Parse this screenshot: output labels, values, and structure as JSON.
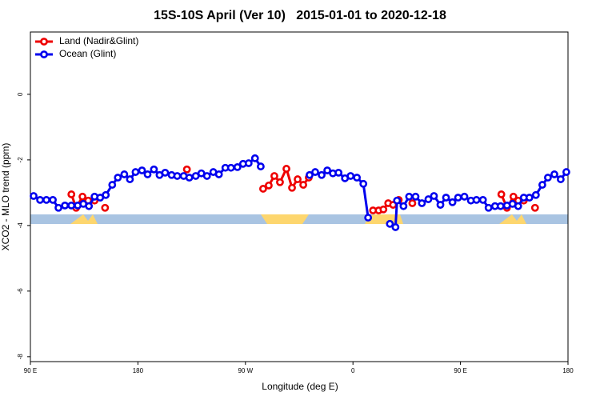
{
  "chart_data": {
    "type": "line",
    "title": "15S-10S April (Ver 10)   2015-01-01 to 2020-12-18",
    "xlabel": "Longitude (deg E)",
    "ylabel": "XCO2 - MLO trend (ppm)",
    "xlim": [
      90,
      540
    ],
    "ylim": [
      -8.15,
      1.9
    ],
    "xticks": [
      {
        "value": 90,
        "label": "90 E"
      },
      {
        "value": 180,
        "label": "180"
      },
      {
        "value": 270,
        "label": "90 W"
      },
      {
        "value": 360,
        "label": "0"
      },
      {
        "value": 450,
        "label": "90 E"
      },
      {
        "value": 540,
        "label": "180"
      }
    ],
    "yticks": [
      0,
      -2,
      -4,
      -6,
      -8
    ],
    "legend": "top-left",
    "series": [
      {
        "name": "Land (Nadir&Glint)",
        "color": "#ee0000",
        "x": [
          124.3,
          128.3,
          133.6,
          138.4,
          143.7,
          null,
          152.5,
          null,
          221.0,
          null,
          284.8,
          289.5,
          294.2,
          298.9,
          304.3,
          309.0,
          313.7,
          318.4,
          323.0,
          null,
          376.8,
          381.5,
          385.5,
          389.5,
          393.6,
          398.3,
          null,
          409.7,
          null,
          484.2,
          488.9,
          494.3,
          498.3,
          503.0,
          null,
          512.4
        ],
        "values": [
          -3.05,
          -3.46,
          -3.12,
          -3.24,
          -3.24,
          null,
          -3.46,
          null,
          -2.29,
          null,
          -2.88,
          -2.78,
          -2.49,
          -2.68,
          -2.27,
          -2.85,
          -2.59,
          -2.76,
          -2.54,
          null,
          -3.54,
          -3.54,
          -3.51,
          -3.32,
          -3.37,
          -3.22,
          null,
          -3.32,
          null,
          -3.05,
          -3.46,
          -3.12,
          -3.24,
          -3.24,
          null,
          -3.46
        ]
      },
      {
        "name": "Ocean (Glint)",
        "color": "#0000ee",
        "x": [
          92.7,
          98.1,
          103.4,
          108.8,
          113.5,
          118.9,
          124.3,
          129.6,
          134.3,
          139.0,
          143.7,
          148.4,
          153.1,
          158.5,
          163.2,
          168.6,
          173.3,
          178.0,
          183.4,
          188.1,
          193.4,
          198.1,
          202.8,
          208.2,
          212.9,
          218.3,
          223.0,
          228.4,
          233.1,
          237.8,
          243.1,
          247.8,
          253.2,
          257.9,
          263.3,
          268.0,
          272.7,
          278.0,
          282.8,
          null,
          323.7,
          328.4,
          333.8,
          338.5,
          343.2,
          347.9,
          353.3,
          358.0,
          363.3,
          368.7,
          372.7,
          null,
          390.9,
          395.6,
          396.9,
          402.3,
          407.0,
          412.4,
          417.7,
          423.1,
          427.8,
          433.2,
          437.9,
          443.3,
          448.0,
          453.3,
          458.7,
          463.4,
          468.8,
          473.5,
          478.9,
          483.6,
          488.9,
          493.6,
          498.3,
          503.0,
          507.7,
          513.1,
          518.5,
          523.2,
          528.6,
          533.9,
          538.6
        ],
        "values": [
          -3.1,
          -3.22,
          -3.22,
          -3.22,
          -3.46,
          -3.39,
          -3.39,
          -3.39,
          -3.34,
          -3.41,
          -3.12,
          -3.15,
          -3.07,
          -2.76,
          -2.54,
          -2.44,
          -2.59,
          -2.37,
          -2.32,
          -2.44,
          -2.29,
          -2.46,
          -2.39,
          -2.46,
          -2.49,
          -2.49,
          -2.54,
          -2.49,
          -2.41,
          -2.49,
          -2.37,
          -2.44,
          -2.24,
          -2.24,
          -2.22,
          -2.12,
          -2.1,
          -1.95,
          -2.2,
          null,
          -2.46,
          -2.37,
          -2.46,
          -2.32,
          -2.41,
          -2.39,
          -2.56,
          -2.49,
          -2.54,
          -2.73,
          -3.76,
          null,
          -3.95,
          -4.05,
          -3.24,
          -3.41,
          -3.12,
          -3.12,
          -3.32,
          -3.2,
          -3.1,
          -3.37,
          -3.15,
          -3.29,
          -3.15,
          -3.12,
          -3.24,
          -3.22,
          -3.22,
          -3.46,
          -3.41,
          -3.41,
          -3.39,
          -3.34,
          -3.41,
          -3.15,
          -3.15,
          -3.07,
          -2.76,
          -2.54,
          -2.44,
          -2.59,
          -2.37
        ]
      }
    ]
  }
}
